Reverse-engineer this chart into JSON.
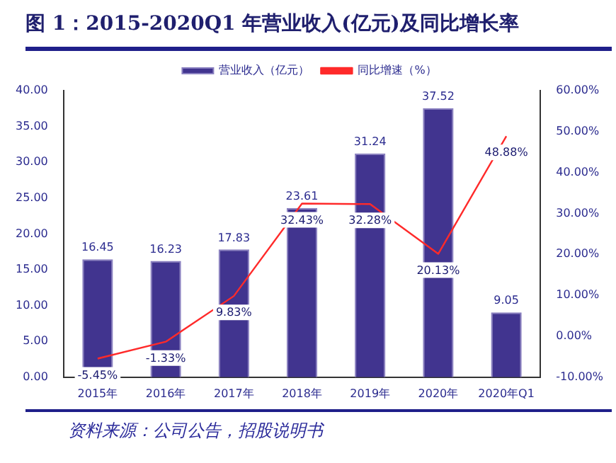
{
  "chart_data": {
    "type": "bar",
    "title": "图 1：2015-2020Q1 年营业收入(亿元)及同比增长率",
    "categories": [
      "2015年",
      "2016年",
      "2017年",
      "2018年",
      "2019年",
      "2020年",
      "2020年Q1"
    ],
    "series": [
      {
        "name": "营业收入（亿元）",
        "color": "#41348f",
        "values": [
          16.45,
          16.23,
          17.83,
          23.61,
          31.24,
          37.52,
          9.05
        ],
        "value_labels": [
          "16.45",
          "16.23",
          "17.83",
          "23.61",
          "31.24",
          "37.52",
          "9.05"
        ]
      },
      {
        "name": "同比增速（%）",
        "type": "line",
        "axis": "y2",
        "color": "#ff2a2a",
        "values": [
          -5.45,
          -1.33,
          9.83,
          32.43,
          32.28,
          20.13,
          48.88
        ],
        "value_labels": [
          "-5.45%",
          "-1.33%",
          "9.83%",
          "32.43%",
          "32.28%",
          "20.13%",
          "48.88%"
        ]
      }
    ],
    "ylim": [
      0,
      40
    ],
    "yticks": [
      {
        "value": 0,
        "label": "0.00"
      },
      {
        "value": 5,
        "label": "5.00"
      },
      {
        "value": 10,
        "label": "10.00"
      },
      {
        "value": 15,
        "label": "15.00"
      },
      {
        "value": 20,
        "label": "20.00"
      },
      {
        "value": 25,
        "label": "25.00"
      },
      {
        "value": 30,
        "label": "30.00"
      },
      {
        "value": 35,
        "label": "35.00"
      },
      {
        "value": 40,
        "label": "40.00"
      }
    ],
    "y2lim": [
      -10,
      60
    ],
    "y2ticks": [
      {
        "value": -10,
        "label": "-10.00%"
      },
      {
        "value": 0,
        "label": "0.00%"
      },
      {
        "value": 10,
        "label": "10.00%"
      },
      {
        "value": 20,
        "label": "20.00%"
      },
      {
        "value": 30,
        "label": "30.00%"
      },
      {
        "value": 40,
        "label": "40.00%"
      },
      {
        "value": 50,
        "label": "50.00%"
      },
      {
        "value": 60,
        "label": "60.00%"
      }
    ],
    "legend": "top",
    "marker": "none",
    "grid": false,
    "annotations": [
      "资料来源：公司公告，招股说明书"
    ]
  }
}
